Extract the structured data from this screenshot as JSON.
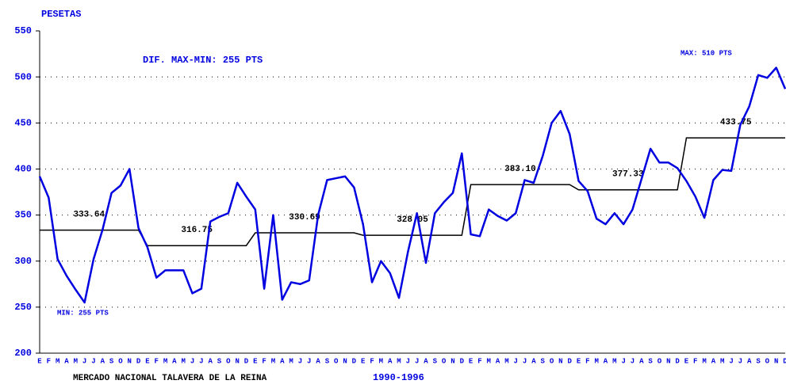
{
  "chart_data": {
    "type": "line",
    "y_label": "PESETAS",
    "annotations": [
      "DIF. MAX-MIN: 255 PTS",
      "MAX: 510 PTS",
      "MIN: 255 PTS"
    ],
    "footer": "MERCADO NACIONAL TALAVERA DE LA REINA",
    "period": "1990-1996",
    "categories": [
      "E",
      "F",
      "M",
      "A",
      "M",
      "J",
      "J",
      "A",
      "S",
      "O",
      "N",
      "D",
      "E",
      "F",
      "M",
      "A",
      "M",
      "J",
      "J",
      "A",
      "S",
      "O",
      "N",
      "D",
      "E",
      "F",
      "M",
      "A",
      "M",
      "J",
      "J",
      "A",
      "S",
      "O",
      "N",
      "D",
      "E",
      "F",
      "M",
      "A",
      "M",
      "J",
      "J",
      "A",
      "S",
      "O",
      "N",
      "D",
      "E",
      "F",
      "M",
      "A",
      "M",
      "J",
      "J",
      "A",
      "S",
      "O",
      "N",
      "D",
      "E",
      "F",
      "M",
      "A",
      "M",
      "J",
      "J",
      "A",
      "S",
      "O",
      "N",
      "D",
      "E",
      "F",
      "M",
      "A",
      "M",
      "J",
      "J",
      "A",
      "S",
      "O",
      "N",
      "D"
    ],
    "series": [
      {
        "color": "#0000e0",
        "values": [
          392,
          369,
          302,
          284,
          269,
          255,
          302,
          334,
          374,
          382,
          400,
          336,
          315,
          282,
          290,
          290,
          290,
          265,
          270,
          343,
          348,
          352,
          385,
          370,
          356,
          270,
          350,
          258,
          277,
          275,
          279,
          350,
          388,
          390,
          392,
          380,
          340,
          277,
          300,
          287,
          260,
          310,
          352,
          298,
          352,
          364,
          374,
          417,
          329,
          327,
          356,
          349,
          344,
          352,
          388,
          385,
          414,
          450,
          463,
          438,
          387,
          376,
          346,
          340,
          352,
          340,
          356,
          389,
          422,
          407,
          407,
          401,
          387,
          370,
          347,
          388,
          399,
          398,
          448,
          468,
          502,
          499,
          510,
          487
        ]
      }
    ],
    "annual_averages": {
      "color": "#000000",
      "values": [
        333.64,
        316.75,
        330.69,
        328.05,
        383.1,
        377.33,
        433.75
      ],
      "value_labels": [
        "333.64",
        "316.75",
        "330.69",
        "328.05",
        "383.10",
        "377.33",
        "433.75"
      ]
    },
    "ylim": [
      200,
      550
    ],
    "yticks": [
      200,
      250,
      300,
      350,
      400,
      450,
      500,
      550
    ],
    "grid": true
  }
}
